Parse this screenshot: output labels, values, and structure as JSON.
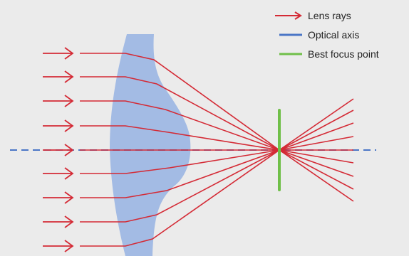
{
  "legend": {
    "items": [
      {
        "key": "rays",
        "label": "Lens rays",
        "color": "#d42a35",
        "style": "arrow"
      },
      {
        "key": "axis",
        "label": "Optical axis",
        "color": "#4a76c6",
        "style": "line"
      },
      {
        "key": "focus",
        "label": "Best focus point",
        "color": "#6fbf48",
        "style": "line"
      }
    ]
  },
  "colors": {
    "ray": "#d42a35",
    "axis": "#4a76c6",
    "focus": "#6fbf48",
    "lens": "#a3bbe4",
    "background": "#ebebeb"
  }
}
